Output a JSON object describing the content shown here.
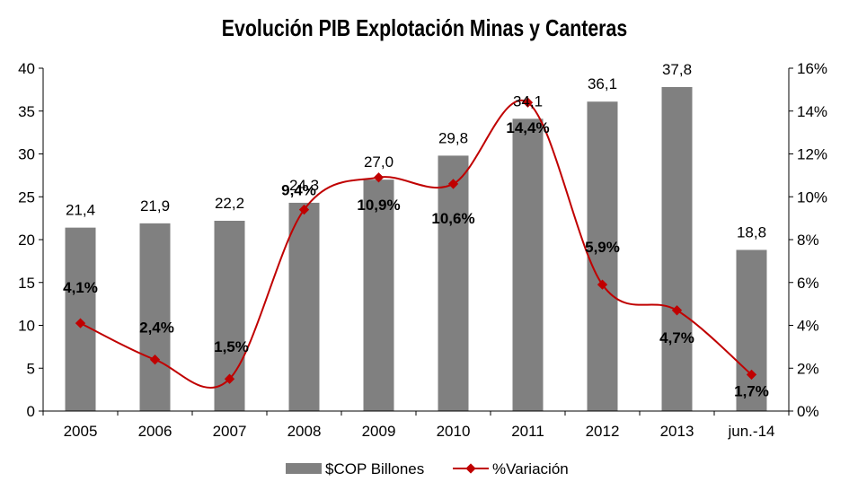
{
  "chart_data": {
    "type": "bar",
    "title": "Evolución PIB Explotación Minas y Canteras",
    "categories": [
      "2005",
      "2006",
      "2007",
      "2008",
      "2009",
      "2010",
      "2011",
      "2012",
      "2013",
      "jun.-14"
    ],
    "series": [
      {
        "name": "$COP Billones",
        "type": "bar",
        "axis": "left",
        "color": "#808080",
        "values": [
          21.4,
          21.9,
          22.2,
          24.3,
          27.0,
          29.8,
          34.1,
          36.1,
          37.8,
          18.8
        ],
        "labels": [
          "21,4",
          "21,9",
          "22,2",
          "24,3",
          "27,0",
          "29,8",
          "34,1",
          "36,1",
          "37,8",
          "18,8"
        ]
      },
      {
        "name": "%Variación",
        "type": "line",
        "axis": "right",
        "color": "#c00000",
        "values": [
          4.1,
          2.4,
          1.5,
          9.4,
          10.9,
          10.6,
          14.4,
          5.9,
          4.7,
          1.7
        ],
        "labels": [
          "4,1%",
          "2,4%",
          "1,5%",
          "9,4%",
          "10,9%",
          "10,6%",
          "14,4%",
          "5,9%",
          "4,7%",
          "1,7%"
        ]
      }
    ],
    "y_left": {
      "min": 0,
      "max": 40,
      "ticks": [
        "0",
        "5",
        "10",
        "15",
        "20",
        "25",
        "30",
        "35",
        "40"
      ]
    },
    "y_right": {
      "min": 0,
      "max": 16,
      "ticks": [
        "0%",
        "2%",
        "4%",
        "6%",
        "8%",
        "10%",
        "12%",
        "14%",
        "16%"
      ]
    },
    "grid": false,
    "legend_position": "bottom"
  }
}
